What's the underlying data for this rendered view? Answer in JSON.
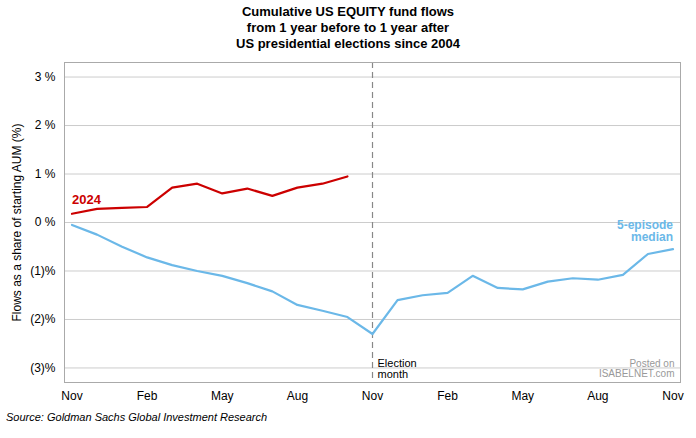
{
  "chart_data": {
    "type": "line",
    "title": "Cumulative US EQUITY fund flows\nfrom 1 year before to 1 year after\nUS presidential elections since 2004",
    "ylabel": "Flows as a share of starting AUM (%)",
    "source": "Source: Goldman Sachs Global Investment Research",
    "x": [
      0,
      1,
      2,
      3,
      4,
      5,
      6,
      7,
      8,
      9,
      10,
      11,
      12,
      13,
      14,
      15,
      16,
      17,
      18,
      19,
      20,
      21,
      22,
      23,
      24
    ],
    "xlim": [
      -0.3,
      24.3
    ],
    "xticks": [
      {
        "value": 0,
        "label": "Nov"
      },
      {
        "value": 3,
        "label": "Feb"
      },
      {
        "value": 6,
        "label": "May"
      },
      {
        "value": 9,
        "label": "Aug"
      },
      {
        "value": 12,
        "label": "Nov"
      },
      {
        "value": 15,
        "label": "Feb"
      },
      {
        "value": 18,
        "label": "May"
      },
      {
        "value": 21,
        "label": "Aug"
      },
      {
        "value": 24,
        "label": "Nov"
      }
    ],
    "ylim": [
      -3.3,
      3.3
    ],
    "yticks": [
      {
        "value": -3,
        "label": "(3)%"
      },
      {
        "value": -2,
        "label": "(2)%"
      },
      {
        "value": -1,
        "label": "(1)%"
      },
      {
        "value": 0,
        "label": "0 %"
      },
      {
        "value": 1,
        "label": "1 %"
      },
      {
        "value": 2,
        "label": "2 %"
      },
      {
        "value": 3,
        "label": "3 %"
      }
    ],
    "grid": true,
    "series": [
      {
        "name": "5-episode\nmedian",
        "color": "#6BB8E8",
        "values": [
          -0.05,
          -0.25,
          -0.5,
          -0.72,
          -0.88,
          -1.0,
          -1.1,
          -1.25,
          -1.42,
          -1.7,
          -1.82,
          -1.95,
          -2.3,
          -1.6,
          -1.5,
          -1.45,
          -1.1,
          -1.35,
          -1.38,
          -1.22,
          -1.15,
          -1.18,
          -1.08,
          -0.65,
          -0.55
        ]
      },
      {
        "name": "2024",
        "color": "#CC0000",
        "values": [
          0.18,
          0.28,
          0.3,
          0.32,
          0.72,
          0.8,
          0.6,
          0.7,
          0.55,
          0.72,
          0.8,
          0.95,
          null,
          null,
          null,
          null,
          null,
          null,
          null,
          null,
          null,
          null,
          null,
          null,
          null
        ]
      }
    ],
    "annotations": [
      {
        "type": "vline",
        "x": 12,
        "text": "Election\nmonth"
      },
      {
        "text": "Posted on\nISABELNET.com"
      }
    ]
  }
}
